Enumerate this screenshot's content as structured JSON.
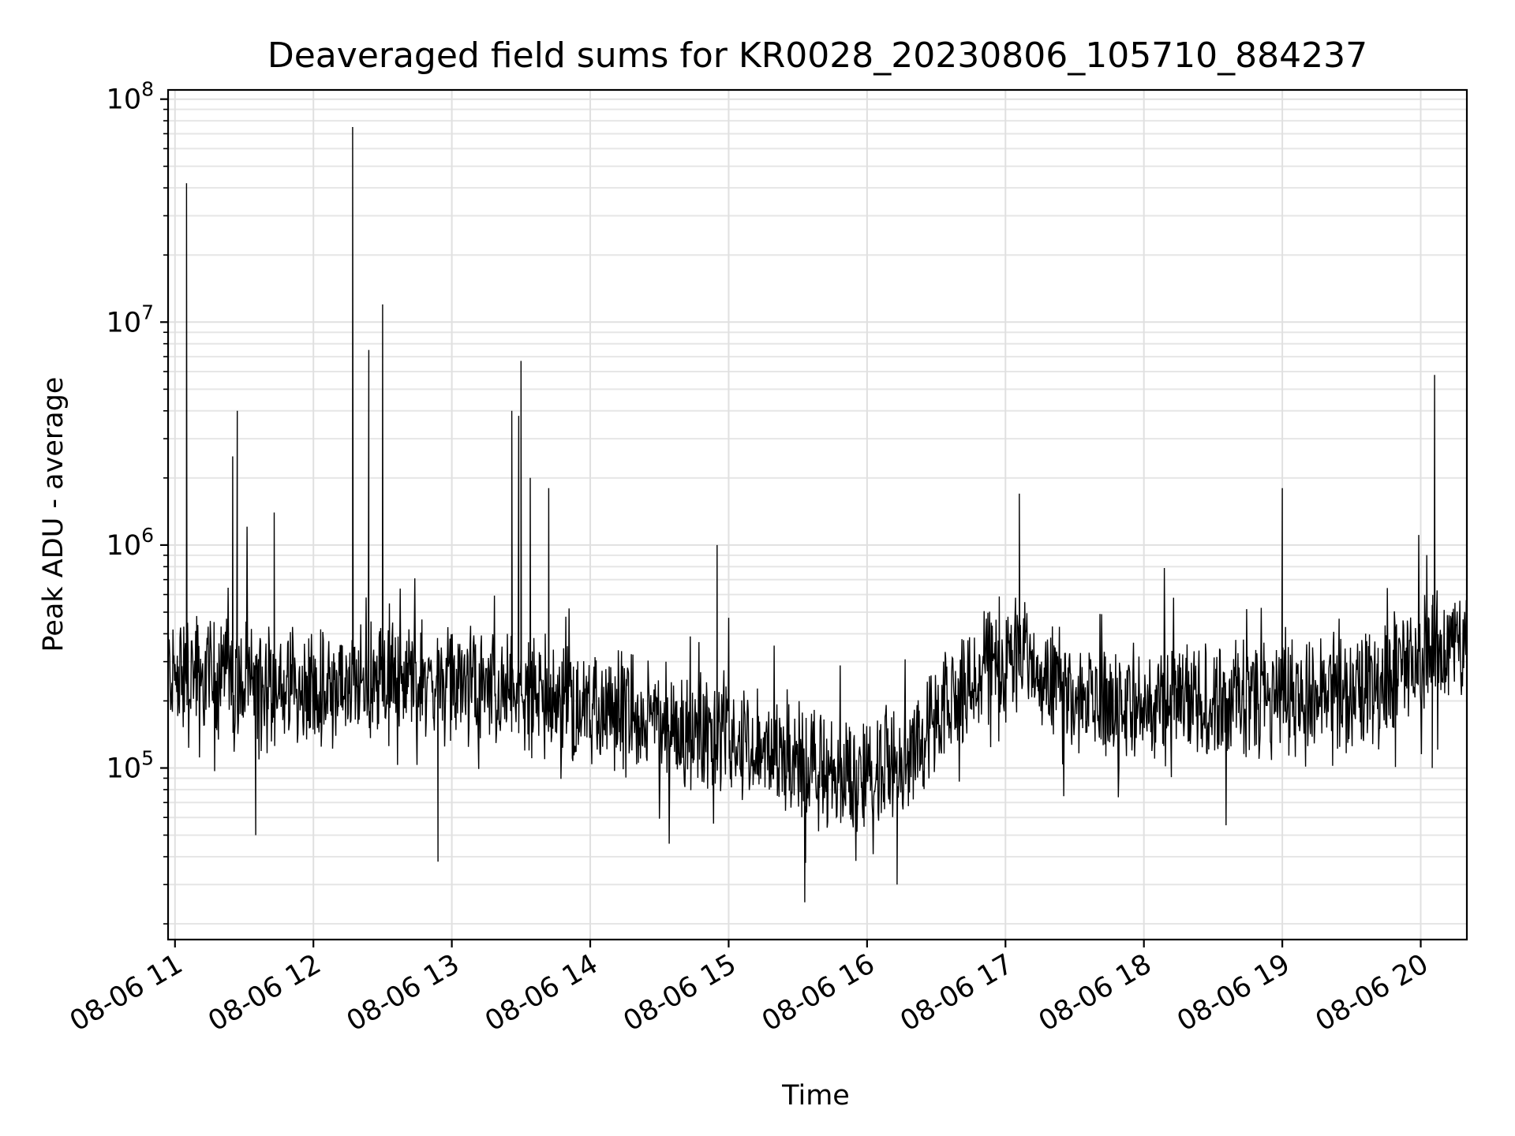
{
  "chart_data": {
    "type": "line",
    "title": "Deaveraged field sums for KR0028_20230806_105710_884237",
    "xlabel": "Time",
    "ylabel": "Peak ADU - average",
    "yscale": "log",
    "ylim": [
      17000,
      110000000
    ],
    "xlim": [
      "2023-08-06 10:57",
      "2023-08-06 20:20"
    ],
    "grid": true,
    "x_ticks": [
      "08-06 11",
      "08-06 12",
      "08-06 13",
      "08-06 14",
      "08-06 15",
      "08-06 16",
      "08-06 17",
      "08-06 18",
      "08-06 19",
      "08-06 20"
    ],
    "y_ticks": [
      {
        "base": "10",
        "exp": "5"
      },
      {
        "base": "10",
        "exp": "6"
      },
      {
        "base": "10",
        "exp": "7"
      },
      {
        "base": "10",
        "exp": "8"
      }
    ],
    "series": [
      {
        "color": "#000000",
        "baseline": [
          [
            "2023-08-06 10:57",
            270000
          ],
          [
            "2023-08-06 11:30",
            240000
          ],
          [
            "2023-08-06 12:00",
            220000
          ],
          [
            "2023-08-06 12:30",
            250000
          ],
          [
            "2023-08-06 13:00",
            240000
          ],
          [
            "2023-08-06 13:30",
            210000
          ],
          [
            "2023-08-06 14:00",
            190000
          ],
          [
            "2023-08-06 14:30",
            160000
          ],
          [
            "2023-08-06 15:00",
            140000
          ],
          [
            "2023-08-06 15:30",
            100000
          ],
          [
            "2023-08-06 16:00",
            90000
          ],
          [
            "2023-08-06 16:30",
            150000
          ],
          [
            "2023-08-06 16:50",
            300000
          ],
          [
            "2023-08-06 17:10",
            330000
          ],
          [
            "2023-08-06 17:30",
            200000
          ],
          [
            "2023-08-06 18:00",
            190000
          ],
          [
            "2023-08-06 18:30",
            200000
          ],
          [
            "2023-08-06 19:00",
            200000
          ],
          [
            "2023-08-06 19:30",
            220000
          ],
          [
            "2023-08-06 20:00",
            310000
          ],
          [
            "2023-08-06 20:20",
            380000
          ]
        ],
        "spikes": [
          [
            "2023-08-06 11:05",
            42000000
          ],
          [
            "2023-08-06 11:25",
            2500000
          ],
          [
            "2023-08-06 11:27",
            4000000
          ],
          [
            "2023-08-06 11:43",
            1400000
          ],
          [
            "2023-08-06 12:17",
            75000000
          ],
          [
            "2023-08-06 12:24",
            7500000
          ],
          [
            "2023-08-06 12:30",
            12000000
          ],
          [
            "2023-08-06 13:26",
            4000000
          ],
          [
            "2023-08-06 13:29",
            3800000
          ],
          [
            "2023-08-06 13:30",
            6700000
          ],
          [
            "2023-08-06 13:34",
            2000000
          ],
          [
            "2023-08-06 13:42",
            1800000
          ],
          [
            "2023-08-06 14:55",
            1000000
          ],
          [
            "2023-08-06 17:06",
            1700000
          ],
          [
            "2023-08-06 19:00",
            1800000
          ],
          [
            "2023-08-06 20:06",
            5800000
          ]
        ],
        "dips": [
          [
            "2023-08-06 11:35",
            50000
          ],
          [
            "2023-08-06 12:54",
            38000
          ],
          [
            "2023-08-06 15:33",
            25000
          ],
          [
            "2023-08-06 16:13",
            30000
          ],
          [
            "2023-08-06 20:05",
            100000
          ]
        ]
      }
    ]
  }
}
